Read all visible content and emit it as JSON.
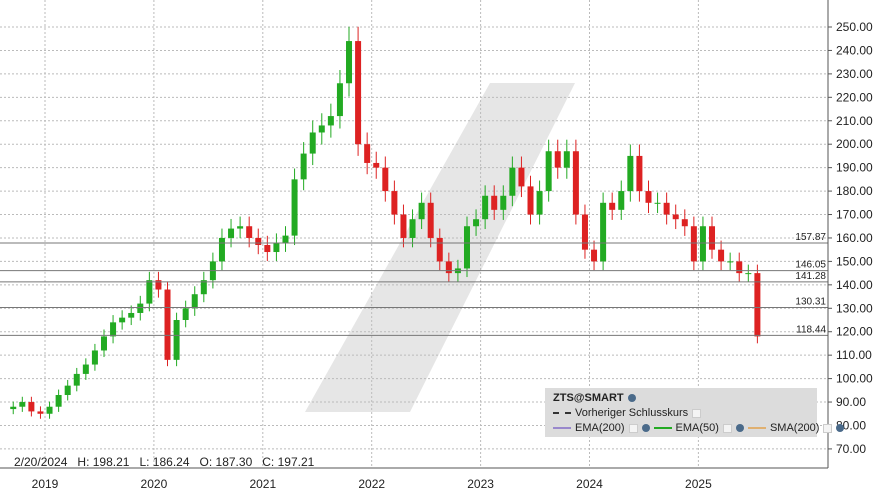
{
  "chart_data": {
    "type": "candlestick",
    "symbol": "ZTS@SMART",
    "ylim": [
      65,
      255
    ],
    "y_ticks": [
      "70.00",
      "80.00",
      "90.00",
      "100.00",
      "110.00",
      "120.00",
      "130.00",
      "140.00",
      "150.00",
      "160.00",
      "170.00",
      "180.00",
      "190.00",
      "200.00",
      "210.00",
      "220.00",
      "230.00",
      "240.00",
      "250.00"
    ],
    "x_ticks": [
      "2019",
      "2020",
      "2021",
      "2022",
      "2023",
      "2024",
      "2025"
    ],
    "grid": true,
    "start_month": "2018-09",
    "monthly_close": [
      88,
      90,
      86,
      85,
      88,
      93,
      97,
      102,
      106,
      112,
      118,
      124,
      126,
      128,
      132,
      142,
      138,
      108,
      125,
      130,
      136,
      142,
      150,
      160,
      164,
      165,
      160,
      157,
      154,
      158,
      161,
      185,
      196,
      205,
      208,
      212,
      226,
      244,
      200,
      192,
      190,
      180,
      170,
      160,
      168,
      175,
      160,
      150,
      145,
      147,
      165,
      168,
      178,
      172,
      178,
      190,
      182,
      170,
      180,
      197,
      190,
      197,
      170,
      155,
      150,
      175,
      172,
      180,
      195,
      180,
      175,
      175,
      170,
      168,
      165,
      150,
      165,
      155,
      150,
      150,
      145,
      145,
      118
    ],
    "horizontal_levels": [
      157.87,
      146.05,
      141.28,
      130.31,
      118.44
    ],
    "colors": {
      "up": "#22aa22",
      "down": "#dd2222",
      "levels": "#888888"
    }
  },
  "info_bar": {
    "date": "2/20/2024",
    "high": "H: 198.21",
    "low": "L: 186.24",
    "open": "O: 187.30",
    "close": "C: 197.21"
  },
  "legend": {
    "title": "ZTS@SMART",
    "prev_close": "Vorheriger Schlusskurs",
    "ema200": "EMA(200)",
    "ema50": "EMA(50)",
    "sma200": "SMA(200)",
    "colors": {
      "ema200": "#9988cc",
      "ema50": "#22aa22",
      "sma200": "#e0b070"
    }
  }
}
